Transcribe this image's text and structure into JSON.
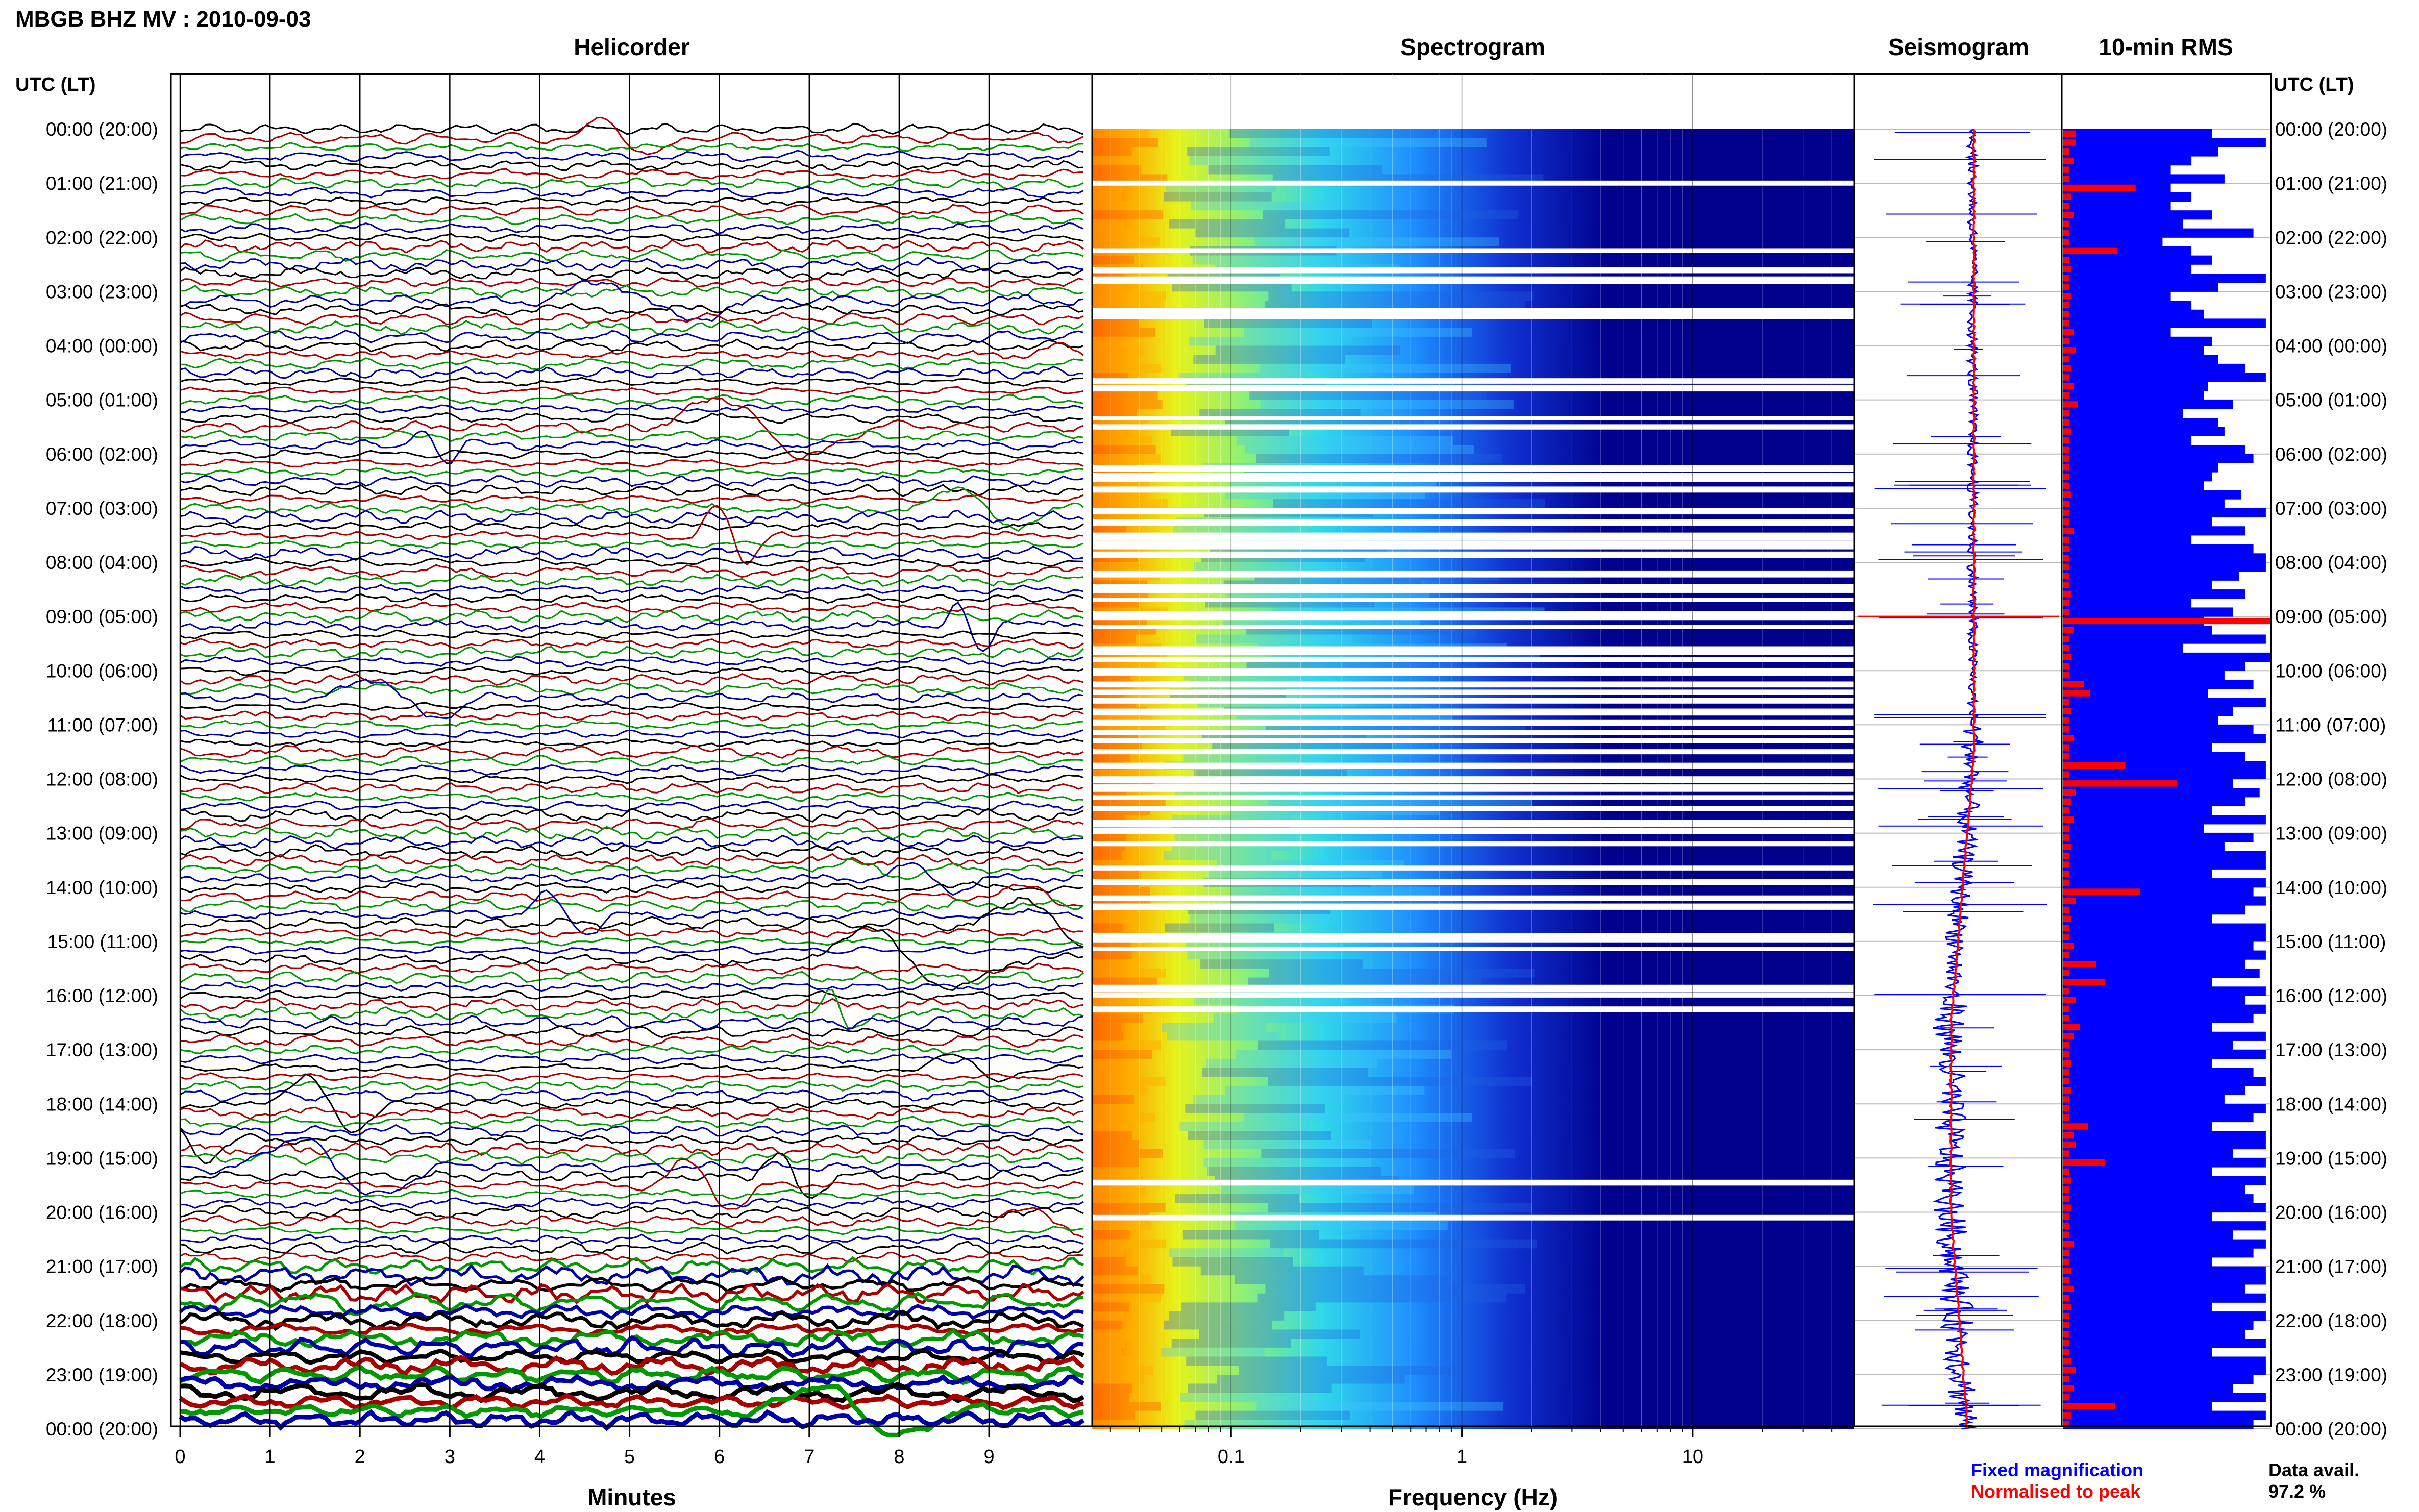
{
  "figure": {
    "title": "MBGB BHZ MV : 2010-09-03",
    "time_axis_label": "UTC (LT)",
    "panels": {
      "helicorder": "Helicorder",
      "spectrogram": "Spectrogram",
      "seismogram": "Seismogram",
      "rms": "10-min RMS"
    },
    "legend": {
      "fixed": "Fixed magnification",
      "normalised": "Normalised to peak"
    },
    "data_avail": {
      "label": "Data avail.",
      "value": "97.2 %"
    },
    "colors": {
      "trace_cycle": [
        "#000000",
        "#aa0000",
        "#009900",
        "#0000aa"
      ],
      "fixed": "#0000ff",
      "normalised": "#ff0000",
      "grid": "#000000"
    }
  },
  "chart_data": [
    {
      "type": "line",
      "title": "Helicorder",
      "xlabel": "Minutes",
      "x_ticks": [
        "0",
        "1",
        "2",
        "3",
        "4",
        "5",
        "6",
        "7",
        "8",
        "9"
      ],
      "xlim": [
        0,
        10
      ],
      "time_ticks": [
        "00:00 (20:00)",
        "01:00 (21:00)",
        "02:00 (22:00)",
        "03:00 (23:00)",
        "04:00 (00:00)",
        "05:00 (01:00)",
        "06:00 (02:00)",
        "07:00 (03:00)",
        "08:00 (04:00)",
        "09:00 (05:00)",
        "10:00 (06:00)",
        "11:00 (07:00)",
        "12:00 (08:00)",
        "13:00 (09:00)",
        "14:00 (10:00)",
        "15:00 (11:00)",
        "16:00 (12:00)",
        "17:00 (13:00)",
        "18:00 (14:00)",
        "19:00 (15:00)",
        "20:00 (16:00)",
        "21:00 (17:00)",
        "22:00 (18:00)",
        "23:00 (19:00)",
        "00:00 (20:00)"
      ],
      "lines_per_hour": 6,
      "trace_count": 144
    },
    {
      "type": "heatmap",
      "title": "Spectrogram",
      "xlabel": "Frequency (Hz)",
      "x_scale": "log",
      "x_ticks": [
        "0.1",
        "1",
        "10"
      ],
      "xlim": [
        0.025,
        50
      ]
    },
    {
      "type": "line",
      "title": "Seismogram",
      "series": [
        {
          "name": "Fixed magnification",
          "color": "#0000ff"
        },
        {
          "name": "Normalised to peak",
          "color": "#ff0000"
        }
      ]
    },
    {
      "type": "bar",
      "title": "10-min RMS",
      "categories": "10-minute windows, 00:00 to 24:00 UTC",
      "series": [
        {
          "name": "Fixed magnification",
          "color": "#0000ff",
          "values": [
            0.72,
            0.98,
            0.75,
            0.62,
            0.52,
            0.78,
            0.52,
            0.62,
            0.52,
            0.72,
            0.58,
            0.92,
            0.48,
            0.62,
            0.72,
            0.62,
            0.98,
            0.75,
            0.52,
            0.62,
            0.68,
            0.98,
            0.52,
            0.72,
            0.68,
            0.75,
            0.88,
            0.98,
            0.7,
            0.68,
            0.82,
            0.58,
            0.75,
            0.78,
            0.62,
            0.88,
            0.92,
            0.75,
            0.72,
            0.68,
            0.86,
            0.78,
            0.98,
            0.72,
            0.88,
            0.62,
            0.92,
            0.98,
            0.98,
            0.85,
            0.72,
            0.88,
            0.62,
            0.82,
            0.68,
            0.72,
            0.98,
            0.58,
            1.0,
            0.88,
            0.78,
            0.92,
            0.7,
            0.98,
            0.82,
            0.75,
            0.92,
            0.98,
            0.72,
            0.88,
            0.98,
            0.98,
            0.82,
            0.95,
            0.88,
            0.72,
            0.98,
            0.68,
            0.92,
            0.78,
            0.98,
            0.98,
            0.72,
            0.98,
            0.92,
            0.98,
            0.88,
            0.72,
            0.98,
            0.98,
            0.92,
            0.98,
            0.88,
            0.95,
            0.72,
            0.98,
            0.88,
            0.98,
            0.92,
            0.72,
            0.98,
            0.82,
            0.98,
            0.72,
            0.92,
            0.98,
            0.88,
            0.78,
            0.98,
            0.92,
            0.72,
            0.98,
            0.98,
            0.82,
            0.98,
            0.72,
            0.98,
            0.88,
            0.92,
            0.98,
            0.72,
            0.98,
            0.82,
            0.98,
            0.92,
            0.72,
            0.98,
            0.98,
            0.88,
            0.98,
            0.72,
            0.98,
            0.92,
            0.88,
            0.98,
            0.72,
            0.98,
            0.98,
            0.92,
            0.82,
            0.98,
            0.72,
            0.98,
            0.92
          ]
        },
        {
          "name": "Normalised to peak",
          "color": "#ff0000",
          "values": [
            0.06,
            0.06,
            0.03,
            0.05,
            0.03,
            0.03,
            0.35,
            0.04,
            0.03,
            0.05,
            0.03,
            0.03,
            0.03,
            0.26,
            0.03,
            0.04,
            0.03,
            0.03,
            0.04,
            0.03,
            0.03,
            0.03,
            0.05,
            0.03,
            0.06,
            0.03,
            0.04,
            0.03,
            0.05,
            0.03,
            0.07,
            0.03,
            0.03,
            0.04,
            0.03,
            0.03,
            0.03,
            0.03,
            0.03,
            0.03,
            0.04,
            0.03,
            0.03,
            0.03,
            0.05,
            0.03,
            0.03,
            0.03,
            0.03,
            0.03,
            0.03,
            0.04,
            0.03,
            0.03,
            1.0,
            0.05,
            0.03,
            0.03,
            0.04,
            0.03,
            0.03,
            0.1,
            0.13,
            0.03,
            0.04,
            0.03,
            0.03,
            0.05,
            0.03,
            0.03,
            0.3,
            0.03,
            0.55,
            0.06,
            0.04,
            0.03,
            0.05,
            0.03,
            0.03,
            0.04,
            0.03,
            0.03,
            0.03,
            0.03,
            0.37,
            0.06,
            0.03,
            0.04,
            0.03,
            0.03,
            0.05,
            0.03,
            0.16,
            0.03,
            0.2,
            0.03,
            0.06,
            0.03,
            0.03,
            0.08,
            0.05,
            0.03,
            0.03,
            0.04,
            0.03,
            0.03,
            0.04,
            0.03,
            0.03,
            0.03,
            0.12,
            0.05,
            0.06,
            0.03,
            0.2,
            0.03,
            0.04,
            0.03,
            0.03,
            0.04,
            0.03,
            0.03,
            0.03,
            0.05,
            0.03,
            0.03,
            0.04,
            0.03,
            0.05,
            0.03,
            0.04,
            0.03,
            0.03,
            0.03,
            0.03,
            0.03,
            0.04,
            0.06,
            0.03,
            0.05,
            0.03,
            0.25,
            0.04,
            0.03
          ]
        }
      ]
    }
  ]
}
